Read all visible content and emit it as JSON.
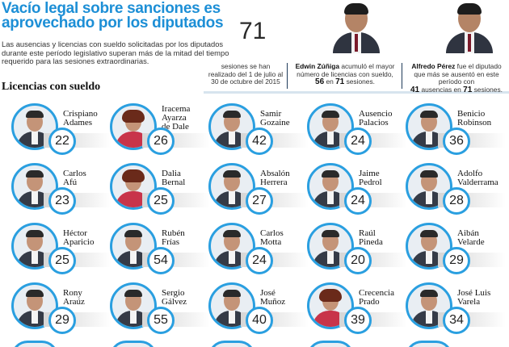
{
  "title": {
    "line1": "Vacío legal sobre sanciones  es",
    "line2": "aprovechado por los diputados"
  },
  "intro": "Las ausencias y licencias con sueldo solicitadas por los diputados durante este período legislativo superan más de la mitad del tiempo requerido para las sesiones extraordinarias.",
  "section_title": "Licencias con sueldo",
  "sessions": {
    "number": "71",
    "caption": "sesiones se han realizado del 1 de julio al 30 de octubre del 2015"
  },
  "highlight_1": {
    "name": "Edwin Zúñiga",
    "text_a": " acumuló el mayor número de licencias con sueldo,",
    "value": "56",
    "text_b": " en ",
    "total": "71",
    "text_c": " sesiones."
  },
  "highlight_2": {
    "name": "Alfredo Pérez",
    "text_a": " fue el diputado que más se ausentó en este período con",
    "value": "41",
    "text_b": " ausencias en ",
    "total": "71",
    "text_c": " sesiones."
  },
  "colors": {
    "accent_blue": "#2a9fe0",
    "title_blue": "#1d8fd6"
  },
  "members": [
    {
      "first": "Crispiano",
      "last": "Adames",
      "count": "22"
    },
    {
      "first": "Iracema",
      "last": "Ayarza",
      "extra": "de Dale",
      "count": "26"
    },
    {
      "first": "Samir",
      "last": "Gozaine",
      "count": "42"
    },
    {
      "first": "Ausencio",
      "last": "Palacios",
      "count": "24"
    },
    {
      "first": "Benicio",
      "last": "Robinson",
      "count": "36"
    },
    {
      "first": "Carlos",
      "last": "Afú",
      "count": "23"
    },
    {
      "first": "Dalia",
      "last": "Bernal",
      "count": "25"
    },
    {
      "first": "Absalón",
      "last": "Herrera",
      "count": "27"
    },
    {
      "first": "Jaime",
      "last": "Pedrol",
      "count": "24"
    },
    {
      "first": "Adolfo",
      "last": "Valderrama",
      "count": "28"
    },
    {
      "first": "Héctor",
      "last": "Aparicio",
      "count": "25"
    },
    {
      "first": "Rubén",
      "last": "Frías",
      "count": "54"
    },
    {
      "first": "Carlos",
      "last": "Motta",
      "count": "24"
    },
    {
      "first": "Raúl",
      "last": "Pineda",
      "count": "20"
    },
    {
      "first": "Aibán",
      "last": "Velarde",
      "count": "29"
    },
    {
      "first": "Rony",
      "last": "Araúz",
      "count": "29"
    },
    {
      "first": "Sergio",
      "last": "Gálvez",
      "count": "55"
    },
    {
      "first": "José",
      "last": "Muñoz",
      "count": "40"
    },
    {
      "first": "Crecencia",
      "last": "Prado",
      "count": "39"
    },
    {
      "first": "José Luis",
      "last": "Varela",
      "count": "34"
    }
  ]
}
